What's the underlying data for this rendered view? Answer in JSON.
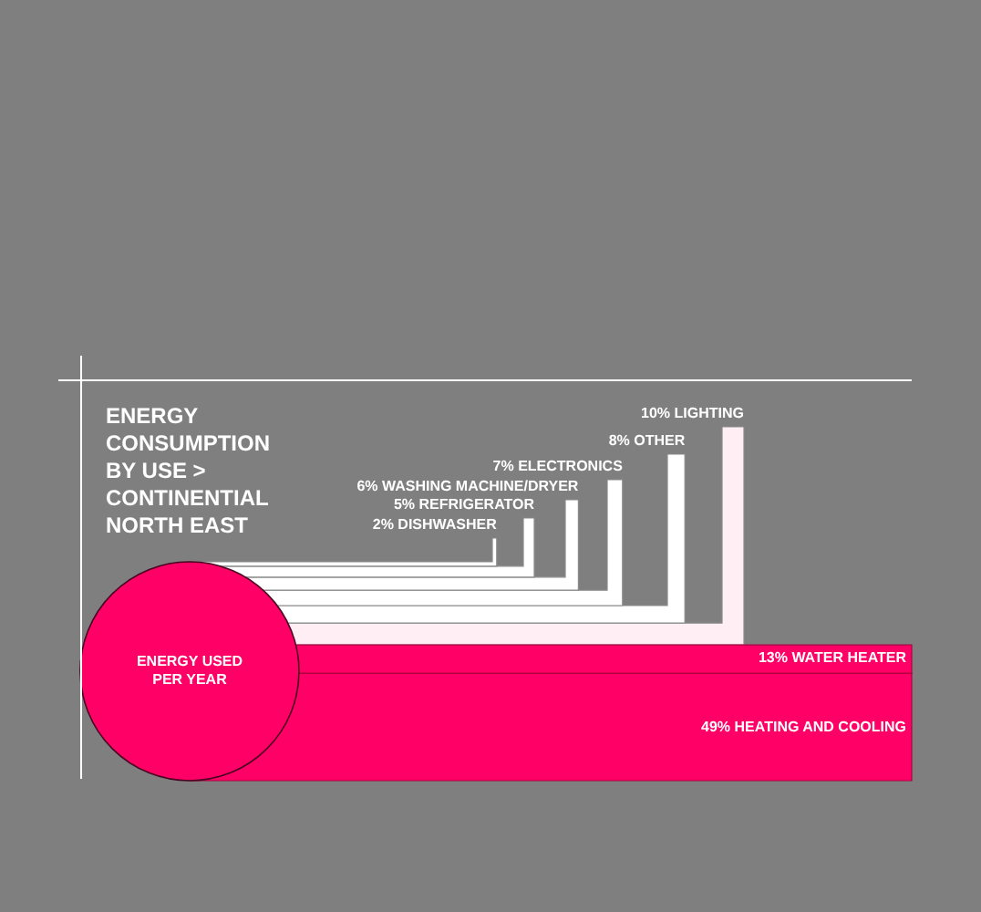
{
  "chart_data": {
    "type": "other",
    "title": "ENERGY CONSUMPTION BY USE  > CONTINENTIAL NORTH EAST",
    "categories": [
      "LIGHTING",
      "OTHER",
      "ELECTRONICS",
      "WASHING MACHINE/DRYER",
      "REFRIGERATOR",
      "DISHWASHER",
      "WATER HEATER",
      "HEATING AND COOLING"
    ],
    "values": [
      10,
      8,
      7,
      6,
      5,
      2,
      13,
      49
    ],
    "value_labels": [
      "10%",
      "8%",
      "7%",
      "6%",
      "5%",
      "2%",
      "13%",
      "49%"
    ],
    "colors": [
      "#ffeef4",
      "#ffffff",
      "#ffffff",
      "#ffffff",
      "#ffffff",
      "#ffffff",
      "#ff0066",
      "#ff0066"
    ],
    "annotations": [
      "ENERGY USED PER YEAR"
    ]
  }
}
